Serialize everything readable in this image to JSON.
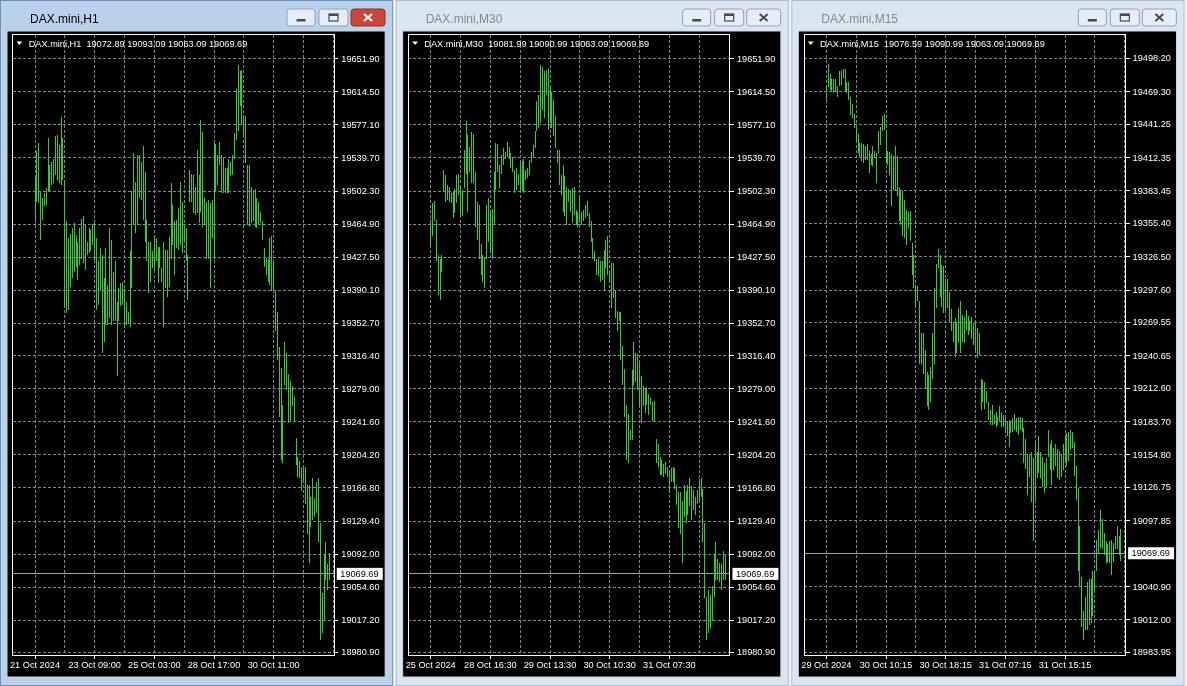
{
  "chart_data": [
    {
      "type": "bar",
      "title": "DAX.mini,H1",
      "subtitle": "DAX.mini,H1  19072.89 19093.09 19063.09 19069.69",
      "categories": [
        "21 Oct 2024",
        null,
        null,
        null,
        null,
        null,
        null,
        null,
        null,
        null,
        null,
        null,
        null,
        null,
        null,
        null,
        null,
        null,
        null,
        null,
        null,
        null,
        null,
        null,
        null,
        null,
        null,
        null,
        null,
        null,
        null,
        null,
        "23 Oct 09:00",
        null,
        null,
        null,
        null,
        null,
        null,
        null,
        null,
        null,
        null,
        null,
        null,
        null,
        null,
        null,
        null,
        null,
        null,
        null,
        null,
        null,
        null,
        null,
        null,
        null,
        null,
        null,
        null,
        null,
        null,
        null,
        "25 Oct 03:00",
        null,
        null,
        null,
        null,
        null,
        null,
        null,
        null,
        null,
        null,
        null,
        null,
        null,
        null,
        null,
        null,
        null,
        null,
        null,
        null,
        null,
        null,
        null,
        null,
        null,
        null,
        null,
        null,
        null,
        null,
        null,
        "28 Oct 17:00",
        null,
        null,
        null,
        null,
        null,
        null,
        null,
        null,
        null,
        null,
        null,
        null,
        null,
        null,
        null,
        null,
        null,
        null,
        null,
        null,
        null,
        null,
        null,
        null,
        null,
        null,
        null,
        null,
        null,
        null,
        null,
        "30 Oct 11:00",
        null,
        null,
        null,
        null,
        null,
        null,
        null,
        null,
        null,
        null,
        null,
        null,
        null,
        null,
        null,
        null,
        null,
        null,
        null,
        null,
        null,
        null,
        null,
        null,
        null,
        null,
        null,
        null,
        null,
        null,
        null,
        null
      ],
      "base": [
        19470,
        19490,
        19489,
        19447,
        19470,
        19485,
        19487,
        19502,
        19502,
        19509,
        19511,
        19520,
        19515,
        19511,
        19509,
        19515,
        19374,
        19364,
        19368,
        19394,
        19404,
        19411,
        19417,
        19402,
        19419,
        19426,
        19421,
        19413,
        19430,
        19432,
        19434,
        19441,
        19423,
        19368,
        19374,
        19391,
        19319,
        19332,
        19351,
        19351,
        19359,
        19351,
        19355,
        19355,
        19293,
        19355,
        19372,
        19374,
        19347,
        19351,
        19353,
        19349,
        19393,
        19464,
        19455,
        19464,
        19494,
        19492,
        19470,
        19445,
        19423,
        19387,
        19400,
        19415,
        19413,
        19423,
        19398,
        19415,
        19400,
        19349,
        19393,
        19383,
        19394,
        19426,
        19441,
        19408,
        19438,
        19436,
        19441,
        19432,
        19447,
        19423,
        19379,
        19490,
        19490,
        19477,
        19475,
        19477,
        19466,
        19479,
        19462,
        19464,
        19426,
        19426,
        19393,
        19449,
        19425,
        19502,
        19509,
        19532,
        19500,
        19500,
        19500,
        19500,
        19500,
        19520,
        19520,
        19538,
        19560,
        19570,
        19598,
        19577,
        19566,
        19534,
        19464,
        19462,
        19466,
        19468,
        19462,
        19460,
        19464,
        19466,
        19447,
        19417,
        19408,
        19400,
        19396,
        19389,
        19389,
        19344,
        19311,
        19247,
        19198,
        19195,
        19283,
        19277,
        19240,
        19243,
        19259,
        19242,
        19193,
        19179,
        19178,
        19163,
        19172,
        19149,
        19115,
        19082,
        19123,
        19131,
        19134,
        19138,
        19106,
        18995,
        19003,
        19016,
        19063,
        19051,
        19063.09,
        null,
        null
      ],
      "values": [
        47,
        58,
        68,
        55,
        24,
        15,
        19,
        60,
        30,
        26,
        28,
        45,
        51,
        43,
        77,
        47,
        141,
        104,
        81,
        60,
        56,
        55,
        36,
        43,
        41,
        45,
        53,
        51,
        15,
        28,
        24,
        24,
        45,
        81,
        49,
        47,
        111,
        72,
        87,
        45,
        102,
        96,
        56,
        68,
        84,
        38,
        26,
        26,
        45,
        26,
        13,
        85,
        109,
        81,
        58,
        79,
        49,
        43,
        83,
        79,
        47,
        58,
        45,
        19,
        38,
        26,
        41,
        24,
        15,
        96,
        43,
        53,
        56,
        85,
        45,
        60,
        32,
        47,
        72,
        58,
        13,
        38,
        51,
        36,
        32,
        43,
        32,
        72,
        55,
        104,
        107,
        30,
        64,
        66,
        96,
        43,
        132,
        53,
        34,
        26,
        43,
        40,
        28,
        28,
        38,
        15,
        23,
        30,
        58,
        75,
        40,
        62,
        21,
        53,
        68,
        70,
        41,
        36,
        43,
        34,
        26,
        13,
        21,
        21,
        19,
        26,
        53,
        62,
        34,
        45,
        55,
        79,
        104,
        66,
        49,
        42,
        55,
        45,
        23,
        28,
        30,
        23,
        19,
        28,
        19,
        41,
        55,
        88,
        34,
        47,
        21,
        36,
        72,
        132,
        45,
        75,
        43,
        30,
        30,
        null,
        null
      ],
      "color": "#33cc33",
      "ylim": [
        18978,
        19679
      ],
      "yticks": [
        {
          "value": 19651.9,
          "label": "19651.90"
        },
        {
          "value": 19614.5,
          "label": "19614.50"
        },
        {
          "value": 19577.1,
          "label": "19577.10"
        },
        {
          "value": 19539.7,
          "label": "19539.70"
        },
        {
          "value": 19502.3,
          "label": "19502.30"
        },
        {
          "value": 19464.9,
          "label": "19464.90"
        },
        {
          "value": 19427.5,
          "label": "19427.50"
        },
        {
          "value": 19390.1,
          "label": "19390.10"
        },
        {
          "value": 19352.7,
          "label": "19352.70"
        },
        {
          "value": 19316.4,
          "label": "19316.40"
        },
        {
          "value": 19279,
          "label": "19279.00"
        },
        {
          "value": 19241.6,
          "label": "19241.60"
        },
        {
          "value": 19204.2,
          "label": "19204.20"
        },
        {
          "value": 19166.8,
          "label": "19166.80"
        },
        {
          "value": 19129.4,
          "label": "19129.40"
        },
        {
          "value": 19092,
          "label": "19092.00"
        },
        {
          "value": 19054.6,
          "label": "19054.60"
        },
        {
          "value": 19017.2,
          "label": "19017.20"
        },
        {
          "value": 18980.9,
          "label": "18980.90"
        }
      ],
      "grid": true,
      "ref_lines": [
        {
          "axis": "y",
          "value": 19069.69,
          "label": "19069.69",
          "color": "#a0a0a0"
        }
      ]
    },
    {
      "type": "bar",
      "title": "DAX.mini,M30",
      "subtitle": "DAX.mini,M30  19081.99 19090.99 19063.09 19069.69",
      "categories": [
        "25 Oct 2024",
        null,
        null,
        null,
        null,
        null,
        null,
        null,
        null,
        null,
        null,
        null,
        null,
        null,
        null,
        null,
        null,
        null,
        null,
        null,
        null,
        null,
        null,
        null,
        null,
        null,
        null,
        null,
        null,
        null,
        null,
        null,
        "28 Oct 16:30",
        null,
        null,
        null,
        null,
        null,
        null,
        null,
        null,
        null,
        null,
        null,
        null,
        null,
        null,
        null,
        null,
        null,
        null,
        null,
        null,
        null,
        null,
        null,
        null,
        null,
        null,
        null,
        null,
        null,
        null,
        null,
        "29 Oct 13:30",
        null,
        null,
        null,
        null,
        null,
        null,
        null,
        null,
        null,
        null,
        null,
        null,
        null,
        null,
        null,
        null,
        null,
        null,
        null,
        null,
        null,
        null,
        null,
        null,
        null,
        null,
        null,
        null,
        null,
        null,
        null,
        "30 Oct 10:30",
        null,
        null,
        null,
        null,
        null,
        null,
        null,
        null,
        null,
        null,
        null,
        null,
        null,
        null,
        null,
        null,
        null,
        null,
        null,
        null,
        null,
        null,
        null,
        null,
        null,
        null,
        null,
        null,
        null,
        null,
        null,
        "31 Oct 07:30",
        null,
        null,
        null,
        null,
        null,
        null,
        null,
        null,
        null,
        null,
        null,
        null,
        null,
        null,
        null,
        null,
        null,
        null,
        null,
        null,
        null,
        null,
        null,
        null,
        null,
        null,
        null,
        null,
        null,
        null,
        null,
        null
      ],
      "base": [
        19440,
        19451,
        19468,
        19423,
        19385,
        19379,
        19411,
        19502,
        19490,
        19492,
        19490,
        19489,
        19472,
        19477,
        19489,
        19498,
        19475,
        19474,
        19506,
        19522,
        19479,
        19524,
        19511,
        19511,
        19462,
        19447,
        19426,
        19408,
        19400,
        19393,
        19426,
        19445,
        19434,
        19426,
        19466,
        19504,
        19524,
        19506,
        19522,
        19532,
        19538,
        19541,
        19539,
        19528,
        19524,
        19500,
        19504,
        19509,
        19504,
        19502,
        19500,
        19515,
        19517,
        19520,
        19534,
        19541,
        19551,
        19570,
        19573,
        19579,
        19594,
        19585,
        19611,
        19571,
        19583,
        19573,
        19564,
        19551,
        19534,
        19509,
        19498,
        19479,
        19474,
        19464,
        19490,
        19479,
        19466,
        19475,
        19464,
        19462,
        19468,
        19464,
        19468,
        19472,
        19474,
        19462,
        19445,
        19426,
        19423,
        19408,
        19406,
        19400,
        19402,
        19391,
        19415,
        19408,
        19400,
        19370,
        19381,
        19359,
        19344,
        19355,
        19311,
        19283,
        19247,
        19198,
        19195,
        19221,
        19221,
        19283,
        19287,
        19277,
        19259,
        19240,
        19259,
        19251,
        19260,
        19249,
        19260,
        19243,
        19242,
        19195,
        19191,
        19181,
        19181,
        19179,
        19183,
        19179,
        19161,
        19174,
        19174,
        19166,
        19147,
        19121,
        19115,
        19082,
        19134,
        19127,
        19136,
        19146,
        19131,
        19142,
        19136,
        19149,
        19153,
        19157,
        19106,
        19042,
        18995,
        19003,
        19008,
        19016,
        19044,
        19063,
        19063,
        19061,
        19051,
        19063,
        19063.09,
        null,
        null
      ],
      "values": [
        30,
        38,
        23,
        47,
        45,
        47,
        19,
        24,
        30,
        17,
        17,
        11,
        30,
        28,
        32,
        24,
        34,
        30,
        43,
        60,
        87,
        28,
        58,
        56,
        62,
        43,
        60,
        34,
        30,
        34,
        60,
        49,
        47,
        56,
        58,
        53,
        32,
        26,
        21,
        19,
        9,
        17,
        13,
        17,
        17,
        26,
        24,
        13,
        30,
        34,
        38,
        11,
        11,
        17,
        13,
        13,
        19,
        34,
        38,
        66,
        49,
        53,
        28,
        70,
        36,
        41,
        41,
        36,
        15,
        40,
        23,
        53,
        45,
        43,
        15,
        24,
        40,
        32,
        17,
        17,
        26,
        15,
        13,
        15,
        17,
        15,
        23,
        23,
        11,
        17,
        21,
        23,
        21,
        45,
        32,
        43,
        11,
        51,
        40,
        30,
        23,
        11,
        55,
        44,
        54,
        62,
        55,
        11,
        79,
        49,
        32,
        41,
        49,
        53,
        23,
        28,
        21,
        24,
        9,
        21,
        23,
        27,
        26,
        21,
        17,
        15,
        13,
        11,
        24,
        15,
        17,
        23,
        23,
        41,
        47,
        70,
        36,
        36,
        34,
        32,
        38,
        23,
        21,
        15,
        24,
        21,
        60,
        85,
        49,
        49,
        38,
        40,
        47,
        43,
        24,
        21,
        30,
        32,
        27.9,
        null,
        null
      ],
      "color": "#33cc33",
      "ylim": [
        18978,
        19679
      ],
      "yticks": [
        {
          "value": 19651.9,
          "label": "19651.90"
        },
        {
          "value": 19614.5,
          "label": "19614.50"
        },
        {
          "value": 19577.1,
          "label": "19577.10"
        },
        {
          "value": 19539.7,
          "label": "19539.70"
        },
        {
          "value": 19502.3,
          "label": "19502.30"
        },
        {
          "value": 19464.9,
          "label": "19464.90"
        },
        {
          "value": 19427.5,
          "label": "19427.50"
        },
        {
          "value": 19390.1,
          "label": "19390.10"
        },
        {
          "value": 19352.7,
          "label": "19352.70"
        },
        {
          "value": 19316.4,
          "label": "19316.40"
        },
        {
          "value": 19279,
          "label": "19279.00"
        },
        {
          "value": 19241.6,
          "label": "19241.60"
        },
        {
          "value": 19204.2,
          "label": "19204.20"
        },
        {
          "value": 19166.8,
          "label": "19166.80"
        },
        {
          "value": 19129.4,
          "label": "19129.40"
        },
        {
          "value": 19092,
          "label": "19092.00"
        },
        {
          "value": 19054.6,
          "label": "19054.60"
        },
        {
          "value": 19017.2,
          "label": "19017.20"
        },
        {
          "value": 18980.9,
          "label": "18980.90"
        }
      ],
      "grid": true,
      "ref_lines": [
        {
          "axis": "y",
          "value": 19069.69,
          "label": "19069.69",
          "color": "#a0a0a0"
        }
      ]
    },
    {
      "type": "bar",
      "title": "DAX.mini,M15",
      "subtitle": "DAX.mini,M15  19076.59 19090.99 19063.09 19069.69",
      "categories": [
        "29 Oct 2024",
        null,
        null,
        null,
        null,
        null,
        null,
        null,
        null,
        null,
        null,
        null,
        null,
        null,
        null,
        null,
        null,
        null,
        null,
        null,
        null,
        null,
        null,
        null,
        null,
        null,
        null,
        null,
        null,
        null,
        null,
        null,
        "30 Oct 10:15",
        null,
        null,
        null,
        null,
        null,
        null,
        null,
        null,
        null,
        null,
        null,
        null,
        null,
        null,
        null,
        null,
        null,
        null,
        null,
        null,
        null,
        null,
        null,
        null,
        null,
        null,
        null,
        null,
        null,
        null,
        null,
        "30 Oct 18:15",
        null,
        null,
        null,
        null,
        null,
        null,
        null,
        null,
        null,
        null,
        null,
        null,
        null,
        null,
        null,
        null,
        null,
        null,
        null,
        null,
        null,
        null,
        null,
        null,
        null,
        null,
        null,
        null,
        null,
        null,
        null,
        "31 Oct 07:15",
        null,
        null,
        null,
        null,
        null,
        null,
        null,
        null,
        null,
        null,
        null,
        null,
        null,
        null,
        null,
        null,
        null,
        null,
        null,
        null,
        null,
        null,
        null,
        null,
        null,
        null,
        null,
        null,
        null,
        null,
        null,
        "31 Oct 15:15",
        null,
        null,
        null,
        null,
        null,
        null,
        null,
        null,
        null,
        null,
        null,
        null,
        null,
        null,
        null,
        null,
        null,
        null,
        null,
        null,
        null,
        null,
        null,
        null,
        null,
        null,
        null,
        null,
        null,
        null,
        null,
        null
      ],
      "base": [
        19462,
        19473,
        19471,
        19470,
        19468,
        19470,
        19465,
        19474,
        19475,
        19481,
        19470,
        19468,
        19462,
        19449,
        19447,
        19438,
        19426,
        19416,
        19413,
        19409,
        19408,
        19410,
        19410,
        19399,
        19406,
        19405,
        19412,
        19390,
        19416,
        19423,
        19435,
        19436,
        19408,
        19406,
        19397,
        19370,
        19384,
        19384,
        19379,
        19357,
        19354,
        19344,
        19343,
        19337,
        19351,
        19340,
        19311,
        19299,
        19282,
        19288,
        19234,
        19234,
        19225,
        19213,
        19197,
        19194,
        19201,
        19221,
        19234,
        19282,
        19317,
        19292,
        19283,
        19278,
        19278,
        19282,
        19270,
        19262,
        19253,
        19240,
        19243,
        19252,
        19243,
        19253,
        19252,
        19263,
        19259,
        19262,
        19255,
        19250,
        19246,
        19239,
        19241,
        19194,
        19201,
        19195,
        19200,
        19185,
        19181,
        19181,
        19182,
        19179,
        19181,
        19184,
        19179,
        19179,
        19175,
        19171,
        19162,
        19174,
        19175,
        19176,
        19175,
        19172,
        19176,
        19175,
        19148,
        19143,
        19120,
        19136,
        19114,
        19080,
        19116,
        19135,
        19139,
        19135,
        19127,
        19122,
        19127,
        19153,
        19142,
        19129,
        19142,
        19145,
        19135,
        19133,
        19136,
        19142,
        19149,
        19145,
        19150,
        19159,
        19161,
        19137,
        19116,
        19054,
        19041,
        19006,
        18995,
        19003,
        19003,
        19008,
        19009,
        19015,
        19038,
        19054,
        19070,
        19074,
        19073,
        19068,
        19061,
        19062,
        19061,
        19051,
        19062,
        19073,
        19073,
        19068,
        19063.09,
        null,
        null
      ],
      "values": [
        13,
        20,
        14,
        10,
        12,
        10,
        9,
        13,
        12,
        8,
        19,
        10,
        16,
        16,
        12,
        12,
        14,
        17,
        12,
        16,
        16,
        12,
        14,
        19,
        9,
        17,
        6,
        26,
        19,
        16,
        13,
        14,
        27,
        12,
        20,
        45,
        30,
        38,
        35,
        30,
        30,
        39,
        33,
        30,
        14,
        26,
        27,
        29,
        20,
        13,
        54,
        26,
        35,
        33,
        30,
        30,
        30,
        39,
        65,
        38,
        16,
        36,
        36,
        40,
        29,
        25,
        26,
        19,
        17,
        33,
        27,
        30,
        45,
        23,
        22,
        17,
        16,
        9,
        19,
        19,
        25,
        26,
        19,
        27,
        19,
        23,
        10,
        16,
        13,
        17,
        7,
        13,
        7,
        13,
        13,
        10,
        12,
        13,
        23,
        9,
        12,
        14,
        12,
        16,
        12,
        12,
        30,
        26,
        36,
        20,
        43,
        72,
        49,
        22,
        32,
        22,
        26,
        26,
        25,
        23,
        22,
        39,
        19,
        19,
        25,
        25,
        20,
        22,
        23,
        29,
        25,
        17,
        14,
        29,
        29,
        72,
        52,
        43,
        25,
        29,
        42,
        39,
        38,
        39,
        17,
        27,
        20,
        33,
        26,
        19,
        19,
        16,
        19,
        30,
        17,
        12,
        20,
        17,
        27.9,
        null,
        null
      ],
      "color": "#33cc33",
      "ylim": [
        18981.6,
        19518.7
      ],
      "yticks": [
        {
          "value": 19498.2,
          "label": "19498.20"
        },
        {
          "value": 19469.3,
          "label": "19469.30"
        },
        {
          "value": 19441.25,
          "label": "19441.25"
        },
        {
          "value": 19412.35,
          "label": "19412.35"
        },
        {
          "value": 19383.45,
          "label": "19383.45"
        },
        {
          "value": 19355.4,
          "label": "19355.40"
        },
        {
          "value": 19326.5,
          "label": "19326.50"
        },
        {
          "value": 19297.6,
          "label": "19297.60"
        },
        {
          "value": 19269.55,
          "label": "19269.55"
        },
        {
          "value": 19240.65,
          "label": "19240.65"
        },
        {
          "value": 19212.6,
          "label": "19212.60"
        },
        {
          "value": 19183.7,
          "label": "19183.70"
        },
        {
          "value": 19154.8,
          "label": "19154.80"
        },
        {
          "value": 19126.75,
          "label": "19126.75"
        },
        {
          "value": 19097.85,
          "label": "19097.85"
        },
        {
          "value": 19040.9,
          "label": "19040.90"
        },
        {
          "value": 19012,
          "label": "19012.00"
        },
        {
          "value": 18983.95,
          "label": "18983.95"
        }
      ],
      "grid": true,
      "ref_lines": [
        {
          "axis": "y",
          "value": 19069.69,
          "label": "19069.69",
          "color": "#a0a0a0"
        }
      ]
    }
  ]
}
